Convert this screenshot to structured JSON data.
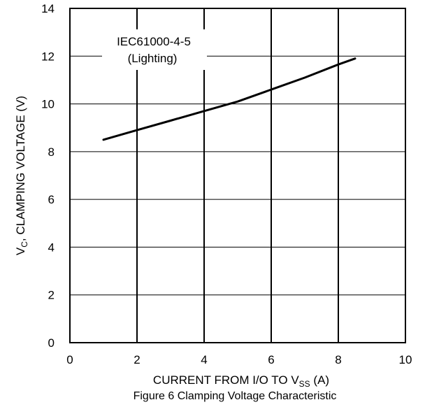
{
  "chart_data": {
    "type": "line",
    "title": "",
    "caption": "Figure 6 Clamping Voltage Characteristic",
    "xlabel": {
      "main": "CURRENT FROM I/O TO V",
      "sub": "SS",
      "tail": " (A)"
    },
    "ylabel": {
      "main": "V",
      "sub": "C",
      "tail": ", CLAMPING VOLTAGE (V)"
    },
    "xlim": [
      0,
      10
    ],
    "ylim": [
      0,
      14
    ],
    "xticks": [
      0,
      2,
      4,
      6,
      8,
      10
    ],
    "yticks": [
      0,
      2,
      4,
      6,
      8,
      10,
      12,
      14
    ],
    "grid": {
      "vertical": true,
      "horizontal": true
    },
    "annotation": {
      "line1": "IEC61000-4-5",
      "line2": "(Lighting)"
    },
    "series": [
      {
        "color": "#000000",
        "x": [
          1,
          2,
          3,
          4,
          5,
          6,
          7,
          8,
          8.5
        ],
        "y": [
          8.5,
          8.9,
          9.3,
          9.7,
          10.1,
          10.6,
          11.1,
          11.65,
          11.9
        ]
      }
    ]
  }
}
